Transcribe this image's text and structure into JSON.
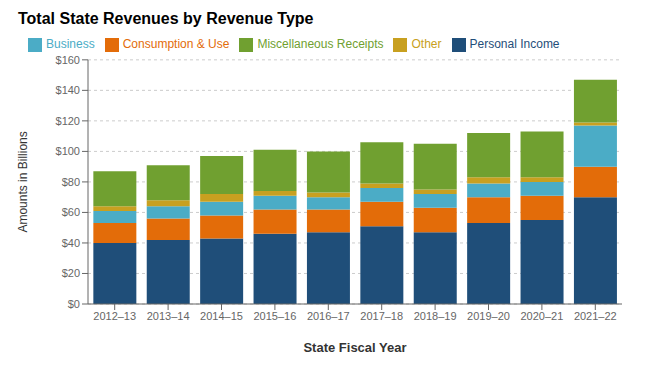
{
  "chart_data": {
    "type": "bar",
    "stacked": true,
    "title": "Total State Revenues by Revenue Type",
    "xlabel": "State Fiscal Year",
    "ylabel": "Amounts in Billions",
    "categories": [
      "2012–13",
      "2013–14",
      "2014–15",
      "2015–16",
      "2016–17",
      "2017–18",
      "2018–19",
      "2019–20",
      "2020–21",
      "2021–22"
    ],
    "series": [
      {
        "name": "Personal Income",
        "color": "#1f4e79",
        "values": [
          40,
          42,
          43,
          46,
          47,
          51,
          47,
          53,
          55,
          70
        ]
      },
      {
        "name": "Consumption & Use",
        "color": "#e36c09",
        "values": [
          13,
          14,
          15,
          16,
          15,
          16,
          16,
          17,
          16,
          20
        ]
      },
      {
        "name": "Business",
        "color": "#4bacc6",
        "values": [
          8,
          8,
          9,
          9,
          8,
          9,
          9,
          9,
          9,
          27
        ]
      },
      {
        "name": "Other",
        "color": "#c8a020",
        "values": [
          3,
          4,
          5,
          3,
          3,
          3,
          3,
          4,
          3,
          2
        ]
      },
      {
        "name": "Miscellaneous Receipts",
        "color": "#70a030",
        "values": [
          23,
          23,
          25,
          27,
          27,
          27,
          30,
          29,
          30,
          28
        ]
      }
    ],
    "ylim": [
      0,
      160
    ],
    "yticks": [
      {
        "value": 0,
        "label": "$0"
      },
      {
        "value": 20,
        "label": "$20"
      },
      {
        "value": 40,
        "label": "$40"
      },
      {
        "value": 60,
        "label": "$60"
      },
      {
        "value": 80,
        "label": "$80"
      },
      {
        "value": 100,
        "label": "$100"
      },
      {
        "value": 120,
        "label": "$120"
      },
      {
        "value": 140,
        "label": "$140"
      },
      {
        "value": 160,
        "label": "$160"
      }
    ],
    "grid": true,
    "legend": "top"
  }
}
